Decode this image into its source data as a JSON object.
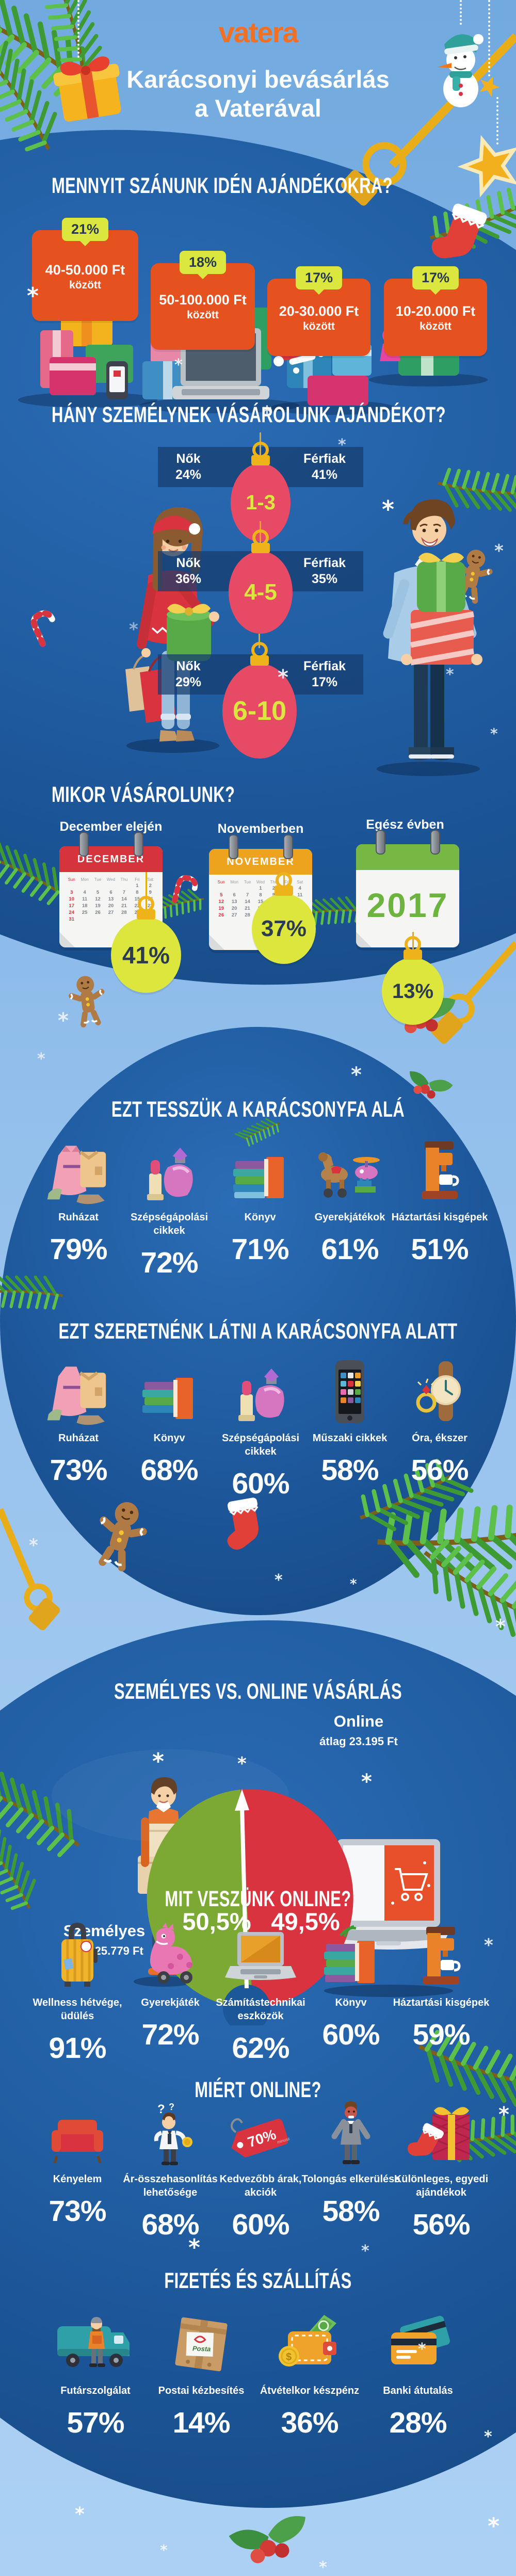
{
  "page": {
    "bg_light": "#7fb2e5",
    "ball_blue": "#1b5394",
    "accent_orange": "#f36f21",
    "card_orange": "#e5521f",
    "badge_yellow": "#dbe63e",
    "ornament_pink": "#e64a64",
    "gauge_red": "#d8333f",
    "gauge_green": "#7ba934"
  },
  "header": {
    "logo": "vatera",
    "title_line1": "Karácsonyi bevásárlás",
    "title_line2": "a Vaterával"
  },
  "budget": {
    "heading": "MENNYIT SZÁNUNK IDÉN AJÁNDÉKOKRA?",
    "cards": [
      {
        "percent": "21%",
        "range": "40-50.000 Ft",
        "suffix": "között"
      },
      {
        "percent": "18%",
        "range": "50-100.000 Ft",
        "suffix": "között"
      },
      {
        "percent": "17%",
        "range": "20-30.000 Ft",
        "suffix": "között"
      },
      {
        "percent": "17%",
        "range": "10-20.000 Ft",
        "suffix": "között"
      }
    ]
  },
  "recipients": {
    "heading": "HÁNY SZEMÉLYNEK VÁSÁROLUNK AJÁNDÉKOT?",
    "rows": [
      {
        "range": "1-3",
        "women_label": "Nők",
        "women": "24%",
        "men_label": "Férfiak",
        "men": "41%"
      },
      {
        "range": "4-5",
        "women_label": "Nők",
        "women": "36%",
        "men_label": "Férfiak",
        "men": "35%"
      },
      {
        "range": "6-10",
        "women_label": "Nők",
        "women": "29%",
        "men_label": "Férfiak",
        "men": "17%"
      }
    ]
  },
  "timing": {
    "heading": "MIKOR VÁSÁROLUNK?",
    "weekdays": [
      "Sun",
      "Mon",
      "Tue",
      "Wed",
      "Thu",
      "Fri",
      "Sat"
    ],
    "columns": [
      {
        "label": "December elején",
        "month": "DECEMBER",
        "percent": "41%",
        "first_offset": 5,
        "days": 31
      },
      {
        "label": "Novemberben",
        "month": "NOVEMBER",
        "percent": "37%",
        "first_offset": 3,
        "days": 30
      },
      {
        "label": "Egész évben",
        "year": "2017",
        "percent": "13%"
      }
    ]
  },
  "under_tree": {
    "heading": "EZT TESSZÜK A KARÁCSONYFA ALÁ",
    "items": [
      {
        "label": "Ruházat",
        "percent": "79%",
        "icon": "clothes-icon"
      },
      {
        "label": "Szépségápolási cikkek",
        "percent": "72%",
        "icon": "cosmetics-icon"
      },
      {
        "label": "Könyv",
        "percent": "71%",
        "icon": "books-icon"
      },
      {
        "label": "Gyerekjátékok",
        "percent": "61%",
        "icon": "toys-icon"
      },
      {
        "label": "Háztartási kisgépek",
        "percent": "51%",
        "icon": "coffee-machine-icon"
      }
    ]
  },
  "wish_list": {
    "heading": "EZT SZERETNÉNK LÁTNI A KARÁCSONYFA ALATT",
    "items": [
      {
        "label": "Ruházat",
        "percent": "73%",
        "icon": "clothes-icon"
      },
      {
        "label": "Könyv",
        "percent": "68%",
        "icon": "books-icon"
      },
      {
        "label": "Szépségápolási cikkek",
        "percent": "60%",
        "icon": "cosmetics-icon"
      },
      {
        "label": "Műszaki cikkek",
        "percent": "58%",
        "icon": "smartphone-icon"
      },
      {
        "label": "Óra, ékszer",
        "percent": "56%",
        "icon": "watch-jewelry-icon"
      }
    ]
  },
  "channel": {
    "heading": "SZEMÉLYES VS. ONLINE VÁSÁRLÁS",
    "personal_label": "Személyes",
    "personal_avg": "átlag 25.779 Ft",
    "personal_percent": "50,5%",
    "online_label": "Online",
    "online_avg": "átlag 23.195 Ft",
    "online_percent": "49,5%"
  },
  "online_items": {
    "heading": "MIT VESZÜNK ONLINE?",
    "items": [
      {
        "label": "Wellness hétvége, üdülés",
        "percent": "91%",
        "icon": "suitcase-icon"
      },
      {
        "label": "Gyerekjáték",
        "percent": "72%",
        "icon": "toy-dino-icon"
      },
      {
        "label": "Számítástechnikai eszközök",
        "percent": "62%",
        "icon": "laptop-icon"
      },
      {
        "label": "Könyv",
        "percent": "60%",
        "icon": "books-icon"
      },
      {
        "label": "Háztartási kisgépek",
        "percent": "59%",
        "icon": "coffee-machine-icon"
      }
    ]
  },
  "online_reasons": {
    "heading": "MIÉRT ONLINE?",
    "tag_percent": "70%",
    "tag_subtext": "minusz",
    "items": [
      {
        "label": "Kényelem",
        "percent": "73%",
        "icon": "sofa-icon"
      },
      {
        "label": "Ár-összehasonlítás lehetősége",
        "percent": "68%",
        "icon": "price-compare-icon"
      },
      {
        "label": "Kedvezőbb árak, akciók",
        "percent": "60%",
        "icon": "sale-tag-icon"
      },
      {
        "label": "Tolongás elkerülése",
        "percent": "58%",
        "icon": "crowd-avoid-icon"
      },
      {
        "label": "Különleges, egyedi ajándékok",
        "percent": "56%",
        "icon": "special-gift-icon"
      }
    ]
  },
  "payment": {
    "heading": "FIZETÉS ÉS SZÁLLÍTÁS",
    "posta_label": "Posta",
    "coin_symbol": "$",
    "items": [
      {
        "label": "Futárszolgálat",
        "percent": "57%",
        "icon": "courier-van-icon"
      },
      {
        "label": "Postai kézbesítés",
        "percent": "14%",
        "icon": "parcel-icon"
      },
      {
        "label": "Átvételkor készpénz",
        "percent": "36%",
        "icon": "wallet-cash-icon"
      },
      {
        "label": "Banki átutalás",
        "percent": "28%",
        "icon": "bank-cards-icon"
      }
    ]
  },
  "chart_data": [
    {
      "type": "bar",
      "title": "Mennyit szánunk idén ajándékokra?",
      "categories": [
        "40-50.000 Ft között",
        "50-100.000 Ft között",
        "20-30.000 Ft között",
        "10-20.000 Ft között"
      ],
      "values": [
        21,
        18,
        17,
        17
      ],
      "unit": "%"
    },
    {
      "type": "bar",
      "title": "Hány személynek vásárolunk ajándékot?",
      "categories": [
        "1-3",
        "4-5",
        "6-10"
      ],
      "series": [
        {
          "name": "Nők",
          "values": [
            24,
            36,
            29
          ]
        },
        {
          "name": "Férfiak",
          "values": [
            41,
            35,
            17
          ]
        }
      ],
      "unit": "%"
    },
    {
      "type": "bar",
      "title": "Mikor vásárolunk?",
      "categories": [
        "December elején",
        "Novemberben",
        "Egész évben"
      ],
      "values": [
        41,
        37,
        13
      ],
      "unit": "%"
    },
    {
      "type": "bar",
      "title": "Ezt tesszük a karácsonyfa alá",
      "categories": [
        "Ruházat",
        "Szépségápolási cikkek",
        "Könyv",
        "Gyerekjátékok",
        "Háztartási kisgépek"
      ],
      "values": [
        79,
        72,
        71,
        61,
        51
      ],
      "unit": "%"
    },
    {
      "type": "bar",
      "title": "Ezt szeretnénk látni a karácsonyfa alatt",
      "categories": [
        "Ruházat",
        "Könyv",
        "Szépségápolási cikkek",
        "Műszaki cikkek",
        "Óra, ékszer"
      ],
      "values": [
        73,
        68,
        60,
        58,
        56
      ],
      "unit": "%"
    },
    {
      "type": "pie",
      "title": "Személyes vs. online vásárlás",
      "categories": [
        "Személyes (átlag 25.779 Ft)",
        "Online (átlag 23.195 Ft)"
      ],
      "values": [
        50.5,
        49.5
      ],
      "unit": "%"
    },
    {
      "type": "bar",
      "title": "Mit veszünk online?",
      "categories": [
        "Wellness hétvége, üdülés",
        "Gyerekjáték",
        "Számítástechnikai eszközök",
        "Könyv",
        "Háztartási kisgépek"
      ],
      "values": [
        91,
        72,
        62,
        60,
        59
      ],
      "unit": "%"
    },
    {
      "type": "bar",
      "title": "Miért online?",
      "categories": [
        "Kényelem",
        "Ár-összehasonlítás lehetősége",
        "Kedvezőbb árak, akciók",
        "Tolongás elkerülése",
        "Különleges, egyedi ajándékok"
      ],
      "values": [
        73,
        68,
        60,
        58,
        56
      ],
      "unit": "%"
    },
    {
      "type": "bar",
      "title": "Fizetés és szállítás",
      "categories": [
        "Futárszolgálat",
        "Postai kézbesítés",
        "Átvételkor készpénz",
        "Banki átutalás"
      ],
      "values": [
        57,
        14,
        36,
        28
      ],
      "unit": "%"
    }
  ]
}
